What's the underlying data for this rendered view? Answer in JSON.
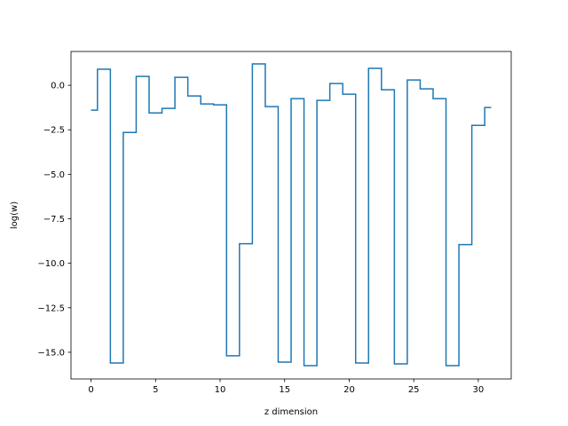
{
  "chart_data": {
    "type": "line",
    "drawstyle": "steps-mid",
    "title": "",
    "xlabel": "z dimension",
    "ylabel": "log(w)",
    "xlim": [
      -1.55,
      32.55
    ],
    "ylim": [
      -16.5,
      1.9
    ],
    "xticks": [
      0,
      5,
      10,
      15,
      20,
      25,
      30
    ],
    "xtick_labels": [
      "0",
      "5",
      "10",
      "15",
      "20",
      "25",
      "30"
    ],
    "yticks": [
      0.0,
      -2.5,
      -5.0,
      -7.5,
      -10.0,
      -12.5,
      -15.0
    ],
    "ytick_labels": [
      "0.0",
      "−2.5",
      "−5.0",
      "−7.5",
      "−10.0",
      "−12.5",
      "−15.0"
    ],
    "grid": false,
    "series": [
      {
        "color": "#1f77b4",
        "x": [
          0,
          1,
          2,
          3,
          4,
          5,
          6,
          7,
          8,
          9,
          10,
          11,
          12,
          13,
          14,
          15,
          16,
          17,
          18,
          19,
          20,
          21,
          22,
          23,
          24,
          25,
          26,
          27,
          28,
          29,
          30,
          31
        ],
        "y": [
          -1.4,
          0.9,
          -15.6,
          -2.65,
          0.5,
          -1.55,
          -1.3,
          0.45,
          -0.6,
          -1.05,
          -1.1,
          -15.2,
          -8.9,
          1.2,
          -1.2,
          -15.55,
          -0.75,
          -15.75,
          -0.85,
          0.1,
          -0.5,
          -15.6,
          0.95,
          -0.25,
          -15.65,
          0.3,
          -0.2,
          -0.75,
          -15.75,
          -8.95,
          -2.25,
          -1.25
        ]
      }
    ]
  }
}
